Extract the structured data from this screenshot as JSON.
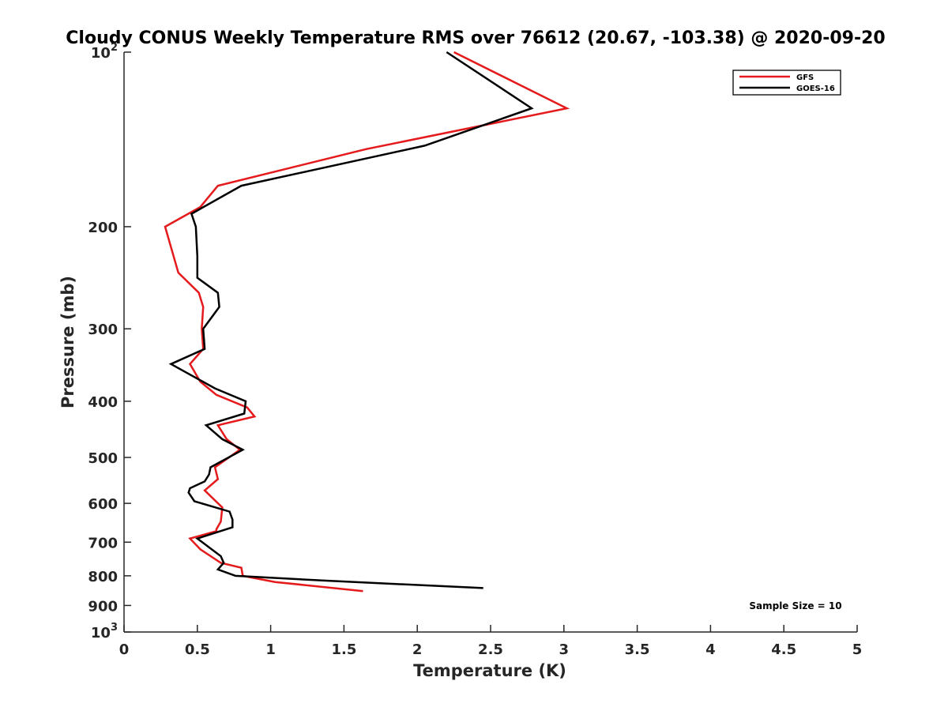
{
  "chart_data": {
    "type": "line",
    "title": "Cloudy CONUS Weekly Temperature RMS over 76612 (20.67, -103.38) @ 2020-09-20",
    "xlabel": "Temperature (K)",
    "ylabel": "Pressure (mb)",
    "xlim": [
      0,
      5
    ],
    "ylim": [
      100,
      1000
    ],
    "y_scale": "log",
    "y_reversed": true,
    "grid": false,
    "legend_position": "top-right",
    "x_ticks": [
      {
        "value": 0,
        "label": "0"
      },
      {
        "value": 0.5,
        "label": "0.5"
      },
      {
        "value": 1,
        "label": "1"
      },
      {
        "value": 1.5,
        "label": "1.5"
      },
      {
        "value": 2,
        "label": "2"
      },
      {
        "value": 2.5,
        "label": "2.5"
      },
      {
        "value": 3,
        "label": "3"
      },
      {
        "value": 3.5,
        "label": "3.5"
      },
      {
        "value": 4,
        "label": "4"
      },
      {
        "value": 4.5,
        "label": "4.5"
      },
      {
        "value": 5,
        "label": "5"
      }
    ],
    "y_ticks": [
      {
        "value": 100,
        "label": "10",
        "exponent": "2"
      },
      {
        "value": 200,
        "label": "200",
        "exponent": ""
      },
      {
        "value": 300,
        "label": "300",
        "exponent": ""
      },
      {
        "value": 400,
        "label": "400",
        "exponent": ""
      },
      {
        "value": 500,
        "label": "500",
        "exponent": ""
      },
      {
        "value": 600,
        "label": "600",
        "exponent": ""
      },
      {
        "value": 700,
        "label": "700",
        "exponent": ""
      },
      {
        "value": 800,
        "label": "800",
        "exponent": ""
      },
      {
        "value": 900,
        "label": "900",
        "exponent": ""
      },
      {
        "value": 1000,
        "label": "10",
        "exponent": "3"
      }
    ],
    "y_minor_ticks": [],
    "annotation": "Sample Size = 10",
    "series": [
      {
        "name": "GFS",
        "color": "#e41a1c",
        "points": [
          [
            2.25,
            100
          ],
          [
            3.02,
            125
          ],
          [
            1.65,
            147
          ],
          [
            0.64,
            170
          ],
          [
            0.52,
            185
          ],
          [
            0.28,
            200
          ],
          [
            0.37,
            240
          ],
          [
            0.51,
            260
          ],
          [
            0.54,
            275
          ],
          [
            0.53,
            300
          ],
          [
            0.54,
            325
          ],
          [
            0.45,
            345
          ],
          [
            0.52,
            370
          ],
          [
            0.63,
            390
          ],
          [
            0.84,
            410
          ],
          [
            0.89,
            425
          ],
          [
            0.64,
            440
          ],
          [
            0.7,
            465
          ],
          [
            0.79,
            485
          ],
          [
            0.62,
            520
          ],
          [
            0.64,
            545
          ],
          [
            0.55,
            570
          ],
          [
            0.67,
            610
          ],
          [
            0.66,
            645
          ],
          [
            0.63,
            665
          ],
          [
            0.63,
            670
          ],
          [
            0.45,
            690
          ],
          [
            0.52,
            720
          ],
          [
            0.66,
            760
          ],
          [
            0.8,
            775
          ],
          [
            0.81,
            800
          ],
          [
            1.03,
            820
          ],
          [
            1.63,
            850
          ]
        ]
      },
      {
        "name": "GOES-16",
        "color": "#000000",
        "points": [
          [
            2.2,
            100
          ],
          [
            2.78,
            125
          ],
          [
            2.05,
            145
          ],
          [
            0.8,
            170
          ],
          [
            0.46,
            190
          ],
          [
            0.49,
            200
          ],
          [
            0.5,
            225
          ],
          [
            0.5,
            245
          ],
          [
            0.64,
            260
          ],
          [
            0.65,
            275
          ],
          [
            0.54,
            300
          ],
          [
            0.55,
            325
          ],
          [
            0.32,
            345
          ],
          [
            0.62,
            380
          ],
          [
            0.83,
            400
          ],
          [
            0.82,
            420
          ],
          [
            0.56,
            440
          ],
          [
            0.67,
            465
          ],
          [
            0.81,
            485
          ],
          [
            0.59,
            520
          ],
          [
            0.58,
            535
          ],
          [
            0.55,
            550
          ],
          [
            0.45,
            565
          ],
          [
            0.44,
            575
          ],
          [
            0.48,
            595
          ],
          [
            0.72,
            620
          ],
          [
            0.74,
            640
          ],
          [
            0.74,
            660
          ],
          [
            0.5,
            690
          ],
          [
            0.66,
            740
          ],
          [
            0.68,
            760
          ],
          [
            0.64,
            780
          ],
          [
            0.76,
            800
          ],
          [
            1.35,
            815
          ],
          [
            2.45,
            840
          ]
        ]
      }
    ]
  }
}
